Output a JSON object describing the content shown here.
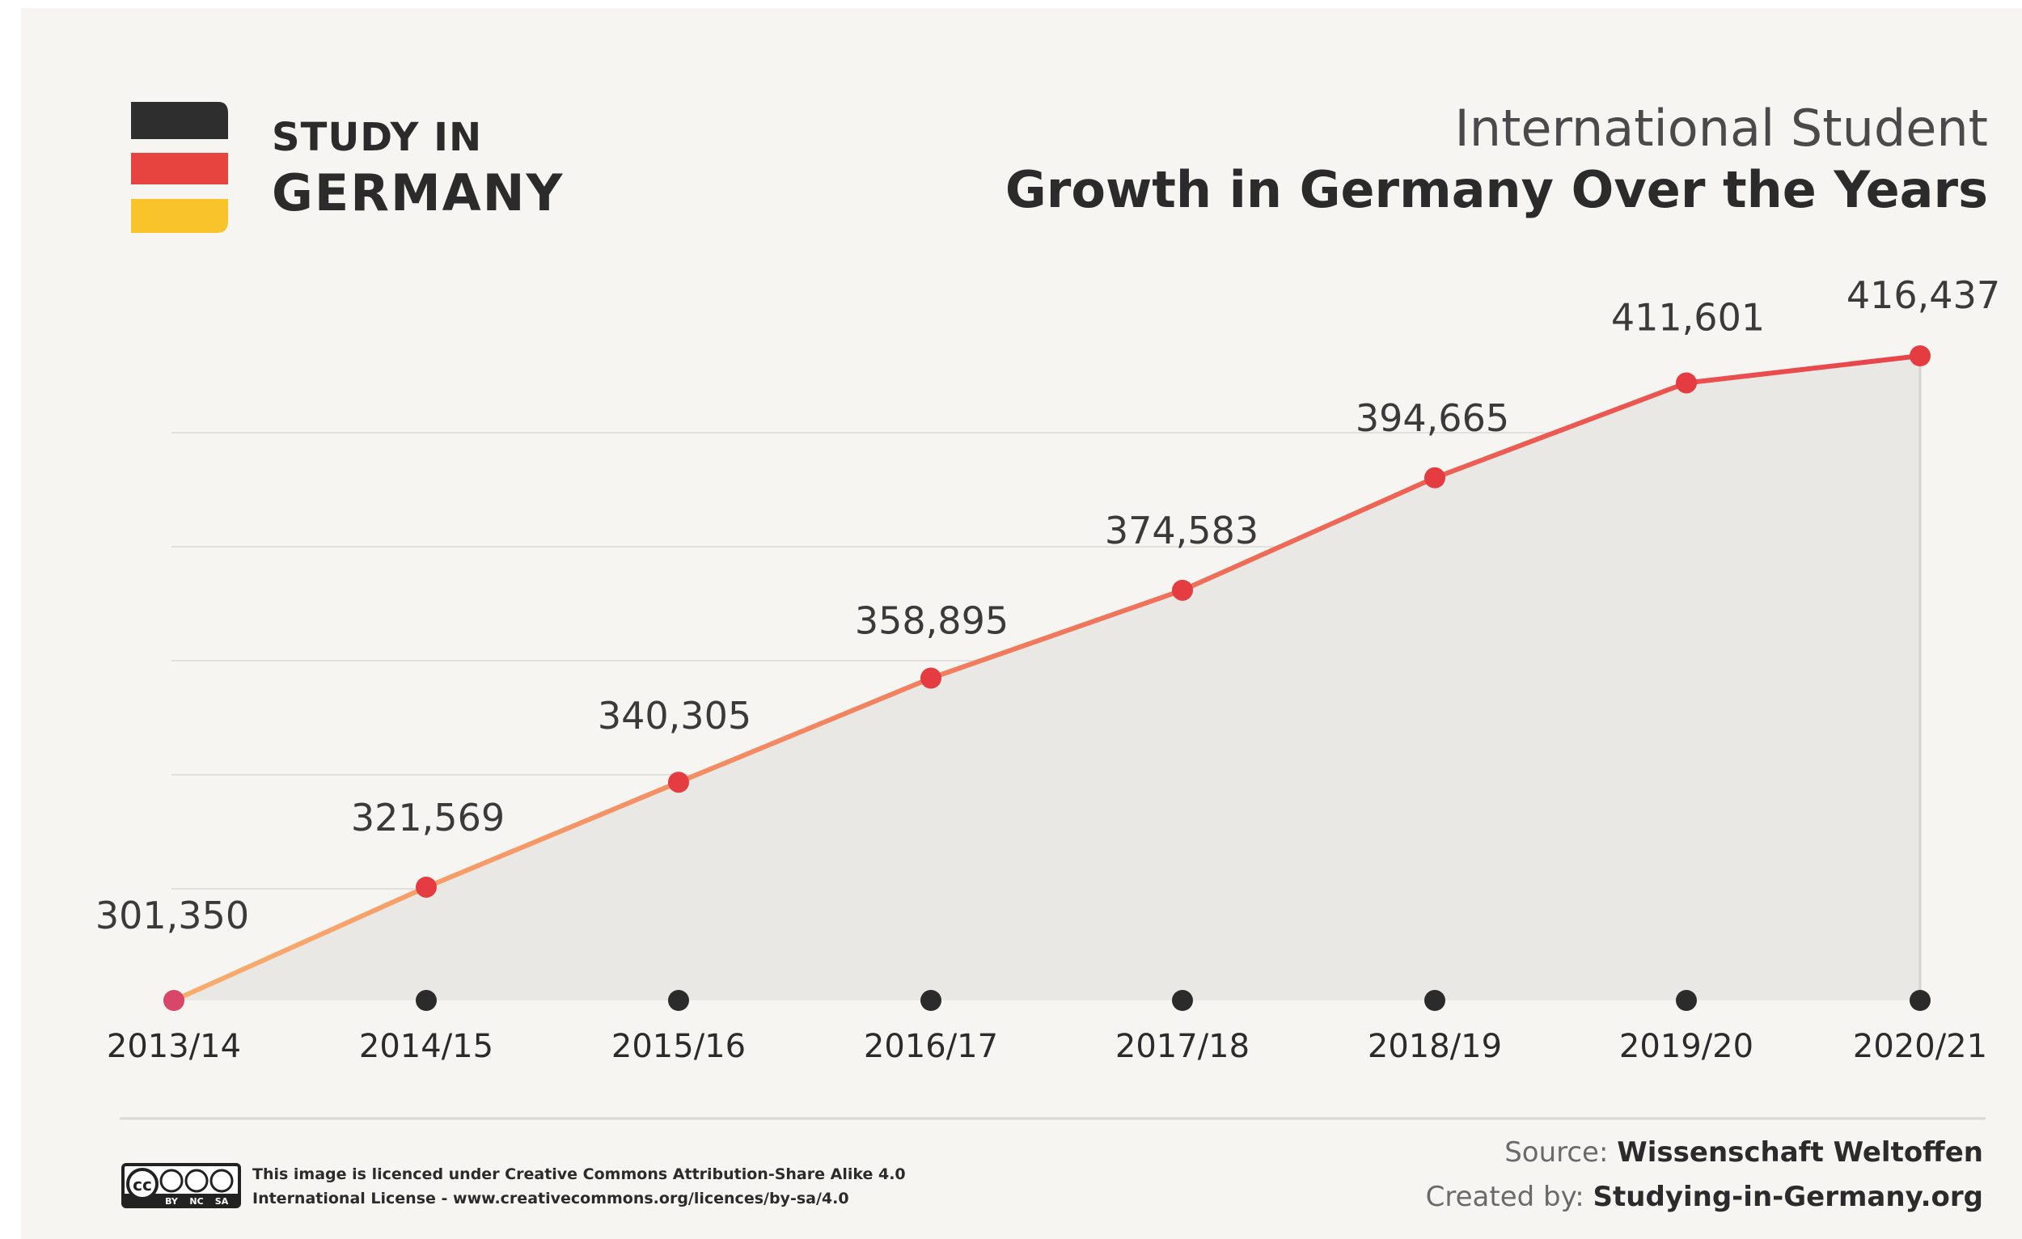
{
  "brand": {
    "line1": "STUDY IN",
    "line2": "GERMANY",
    "flag_colors": [
      "#2e2e2e",
      "#e8443f",
      "#f8c429"
    ]
  },
  "header": {
    "title_light": "International Student",
    "title_bold": "Growth in Germany Over the Years"
  },
  "chart_data": {
    "type": "area",
    "categories": [
      "2013/14",
      "2014/15",
      "2015/16",
      "2016/17",
      "2017/18",
      "2018/19",
      "2019/20",
      "2020/21"
    ],
    "values": [
      301350,
      321569,
      340305,
      358895,
      374583,
      394665,
      411601,
      416437
    ],
    "value_labels": [
      "301,350",
      "321,569",
      "340,305",
      "358,895",
      "374,583",
      "394,665",
      "411,601",
      "416,437"
    ],
    "ylim": [
      301350,
      416437
    ],
    "grid": true,
    "line_gradient": [
      "#f9ad6e",
      "#e8434a"
    ],
    "point_color": "#e53c42",
    "first_point_color": "#d8466a",
    "axis_dot_color": "#2b2b2b",
    "area_color": "#e9e8e4"
  },
  "footer": {
    "license_line1": "This image is licenced under Creative Commons Attribution-Share Alike 4.0",
    "license_line2": "International License - www.creativecommons.org/licences/by-sa/4.0",
    "source_label": "Source:",
    "source_value": "Wissenschaft Weltoffen",
    "created_label": "Created by:",
    "created_value": "Studying-in-Germany.org",
    "cc_badges": [
      "BY",
      "NC",
      "SA"
    ]
  }
}
